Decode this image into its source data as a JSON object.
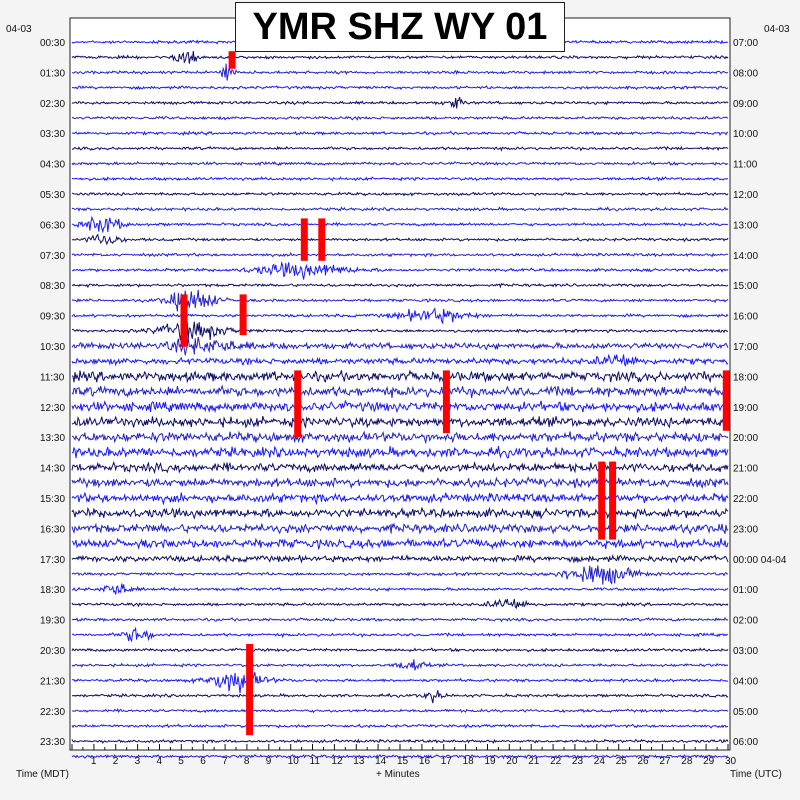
{
  "title": "YMR SHZ WY 01",
  "date_left": "04-03",
  "date_right": "04-03",
  "xlabel_left": "Time (MDT)",
  "xlabel_center": "+ Minutes",
  "xlabel_right": "Time (UTC)",
  "colors": {
    "trace_blue": "#1a1aff",
    "trace_navy": "#0d0d66",
    "trace_mid": "#2323c8",
    "clip_red": "#ff0000",
    "background": "#f4f4f4",
    "plot_bg": "#ffffff"
  },
  "chart_data": {
    "type": "helicorder",
    "title": "YMR SHZ WY 01",
    "xlabel": "+ Minutes",
    "ylabel_left": "Time (MDT)",
    "ylabel_right": "Time (UTC)",
    "xlim": [
      0,
      30
    ],
    "x_ticks": [
      1,
      2,
      3,
      4,
      5,
      6,
      7,
      8,
      9,
      10,
      11,
      12,
      13,
      14,
      15,
      16,
      17,
      18,
      19,
      20,
      21,
      22,
      23,
      24,
      25,
      26,
      27,
      28,
      29,
      30
    ],
    "traces_per_hour": 2,
    "trace_count": 48,
    "left_labels": [
      "00:30",
      "01:30",
      "02:30",
      "03:30",
      "04:30",
      "05:30",
      "06:30",
      "07:30",
      "08:30",
      "09:30",
      "10:30",
      "11:30",
      "12:30",
      "13:30",
      "14:30",
      "15:30",
      "16:30",
      "17:30",
      "18:30",
      "19:30",
      "20:30",
      "21:30",
      "22:30",
      "23:30"
    ],
    "right_labels": [
      "07:00",
      "08:00",
      "09:00",
      "10:00",
      "11:00",
      "12:00",
      "13:00",
      "14:00",
      "15:00",
      "16:00",
      "17:00",
      "18:00",
      "19:00",
      "20:00",
      "21:00",
      "22:00",
      "23:00",
      "00:00 04-04",
      "01:00",
      "02:00",
      "03:00",
      "04:00",
      "05:00",
      "06:00"
    ],
    "grid": false
  }
}
